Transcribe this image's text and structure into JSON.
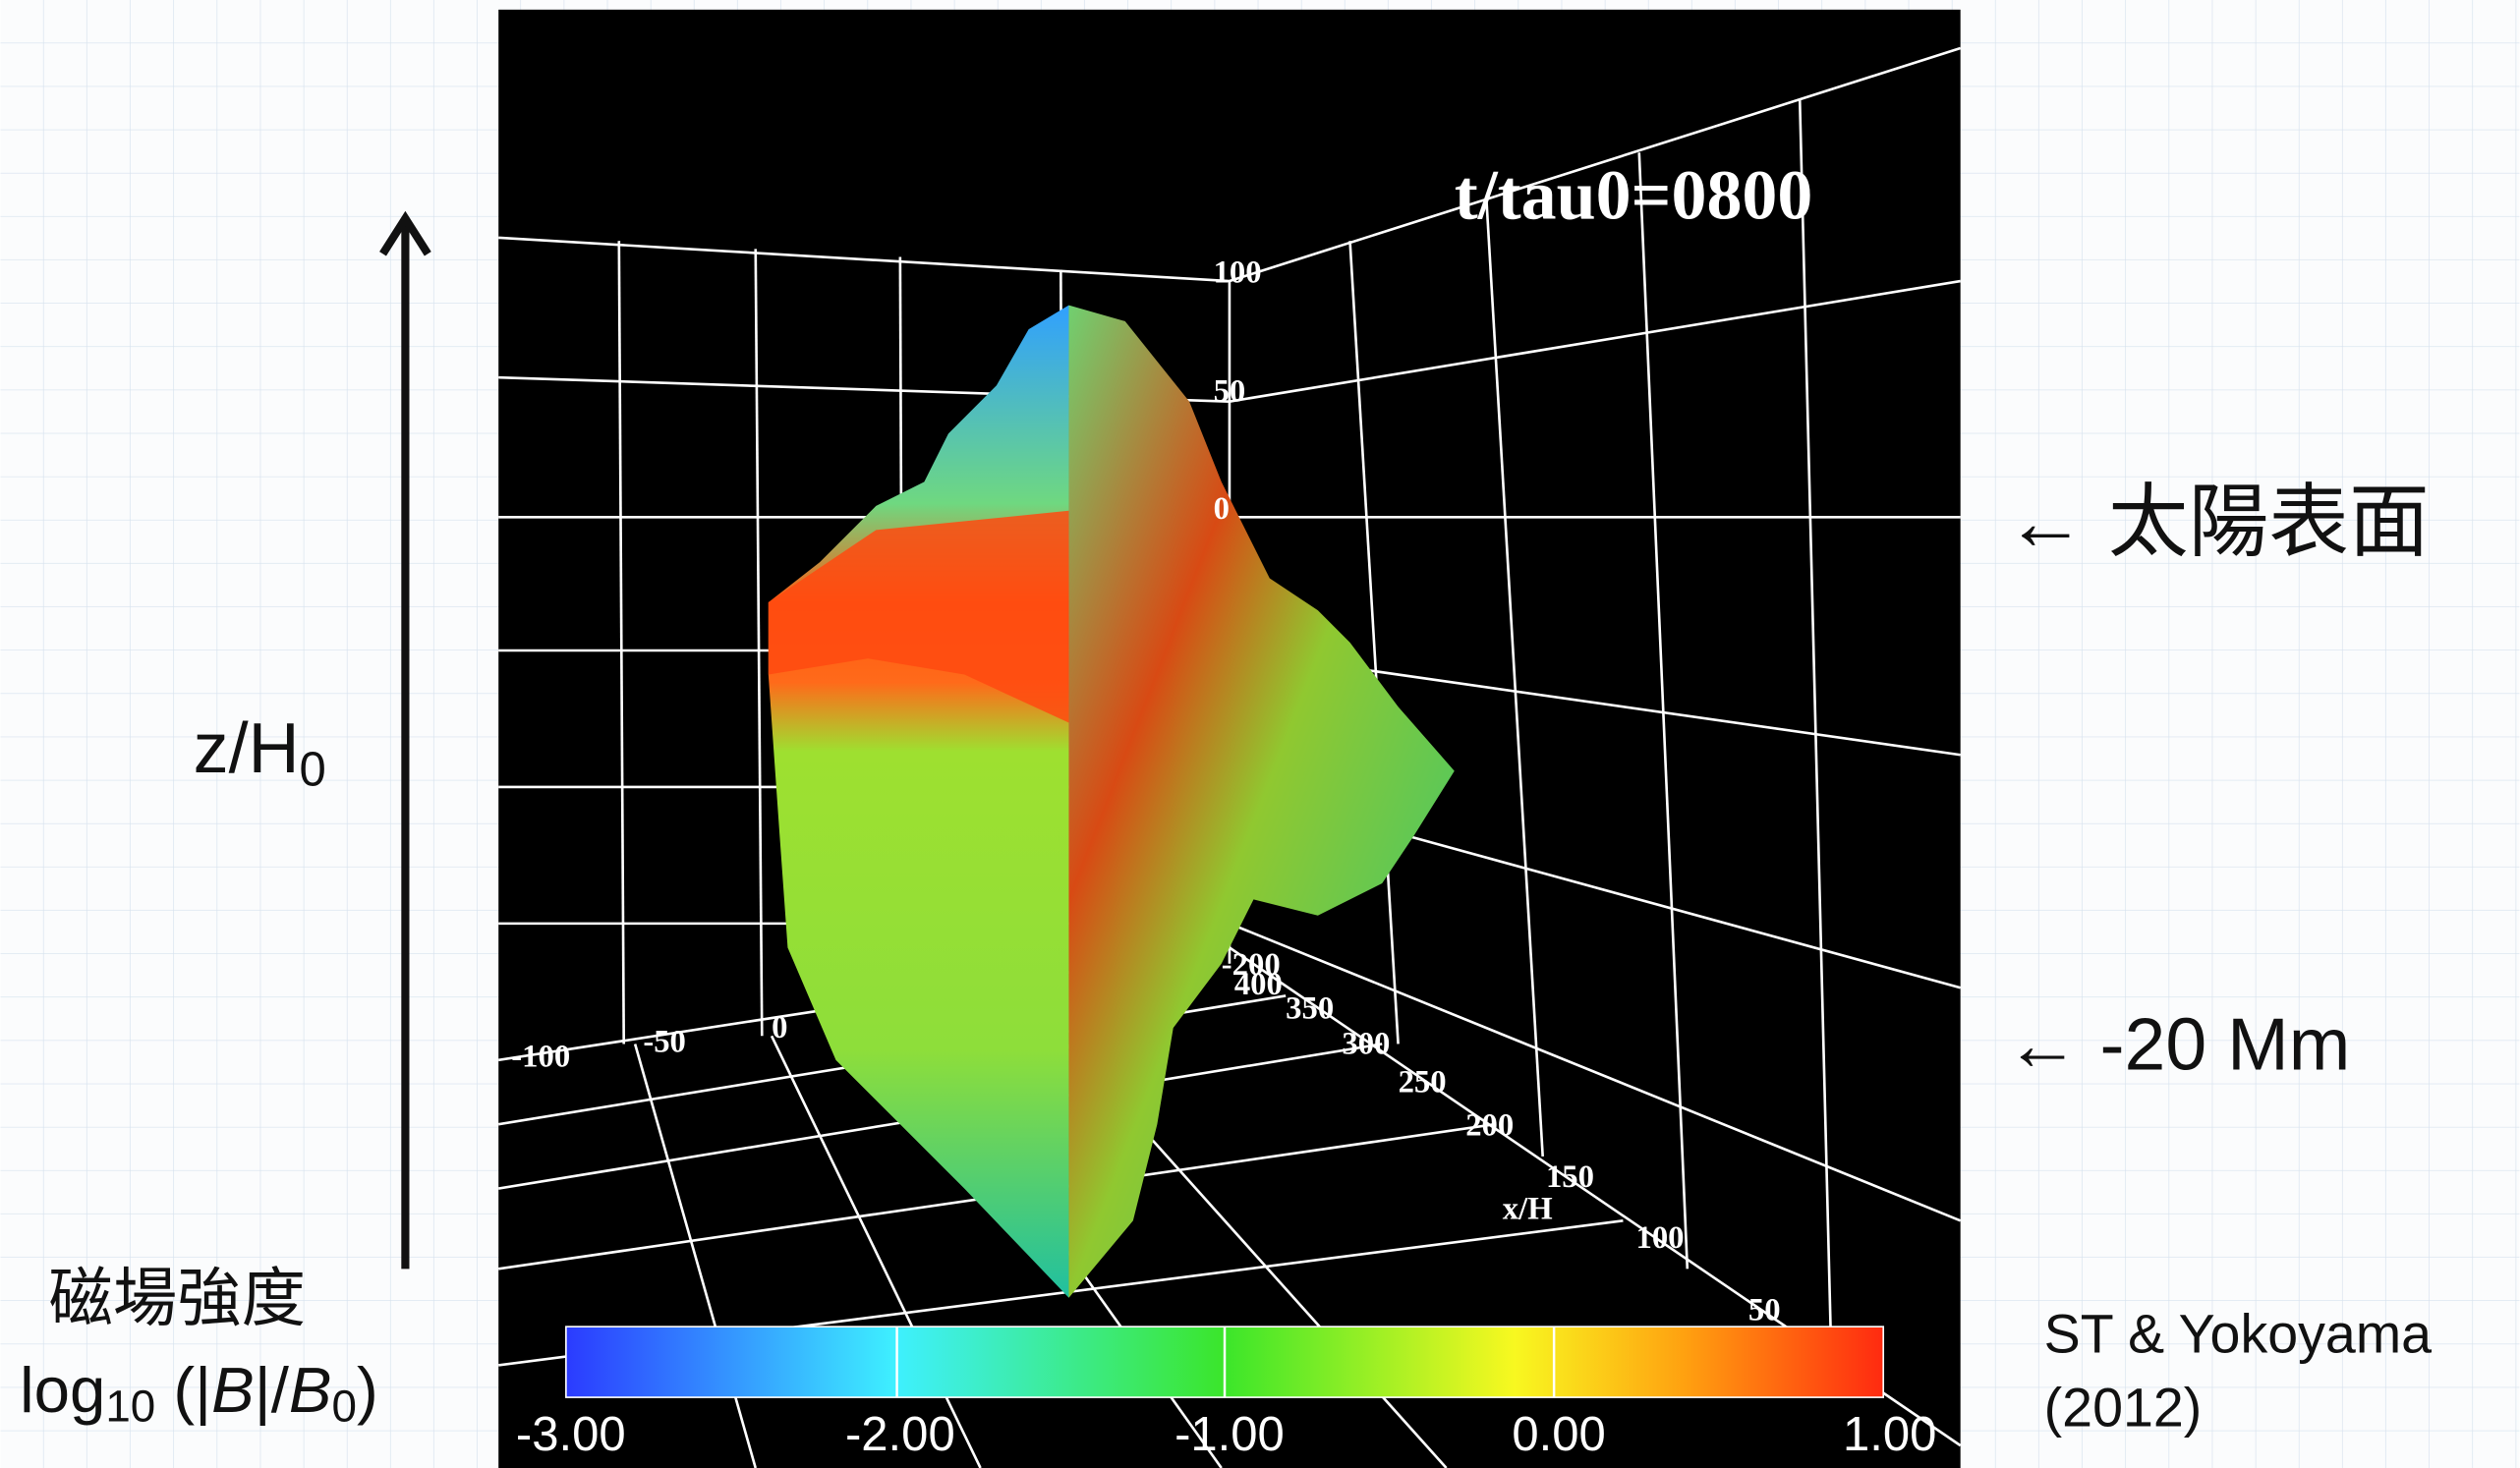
{
  "slide": {
    "axis_label": {
      "main": "z/H",
      "sub": "0"
    },
    "colorbar_title": "磁場強度",
    "colorbar_formula": {
      "log": "log",
      "base": "10",
      "open": " (|",
      "b1": "B",
      "mid": "|/",
      "b2": "B",
      "sub": "0",
      "close": ")"
    },
    "annotations": [
      "← 太陽表面",
      "← -20 Mm"
    ],
    "credit": [
      "ST & Yokoyama",
      "(2012)"
    ],
    "simulation": {
      "time_label": "t/tau0=0800",
      "z_ticks": [
        "100",
        "50",
        "0"
      ],
      "y_ticks": [
        "-100",
        "-50",
        "0"
      ],
      "x_ticks": [
        "-200",
        "400",
        "350",
        "300",
        "250",
        "200",
        "150",
        "100",
        "50"
      ],
      "x_axis_label": "x/H",
      "colorbar_ticks": [
        "-3.00",
        "-2.00",
        "-1.00",
        "0.00",
        "1.00"
      ]
    }
  }
}
